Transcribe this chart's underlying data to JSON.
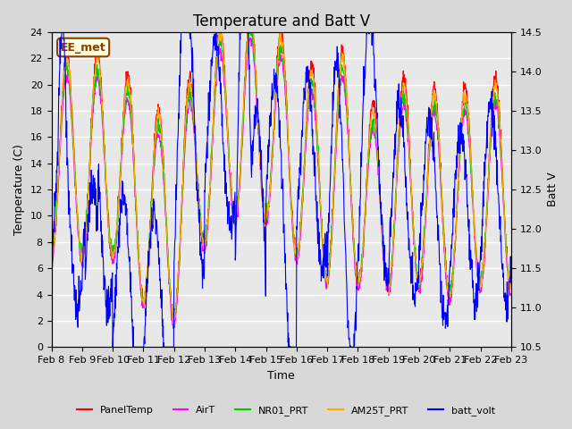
{
  "title": "Temperature and Batt V",
  "xlabel": "Time",
  "ylabel_left": "Temperature (C)",
  "ylabel_right": "Batt V",
  "annotation": "EE_met",
  "ylim_left": [
    0,
    24
  ],
  "ylim_right": [
    10.5,
    14.5
  ],
  "yticks_left": [
    0,
    2,
    4,
    6,
    8,
    10,
    12,
    14,
    16,
    18,
    20,
    22,
    24
  ],
  "yticks_right": [
    10.5,
    11.0,
    11.5,
    12.0,
    12.5,
    13.0,
    13.5,
    14.0,
    14.5
  ],
  "series_colors": {
    "PanelTemp": "#ff0000",
    "AirT": "#ff00ff",
    "NR01_PRT": "#00cc00",
    "AM25T_PRT": "#ffaa00",
    "batt_volt": "#0000ff"
  },
  "legend_labels": [
    "PanelTemp",
    "AirT",
    "NR01_PRT",
    "AM25T_PRT",
    "batt_volt"
  ],
  "background_color": "#d8d8d8",
  "plot_bg_color": "#e8e8e8",
  "grid_color": "#ffffff",
  "title_fontsize": 12,
  "label_fontsize": 9,
  "tick_fontsize": 8
}
